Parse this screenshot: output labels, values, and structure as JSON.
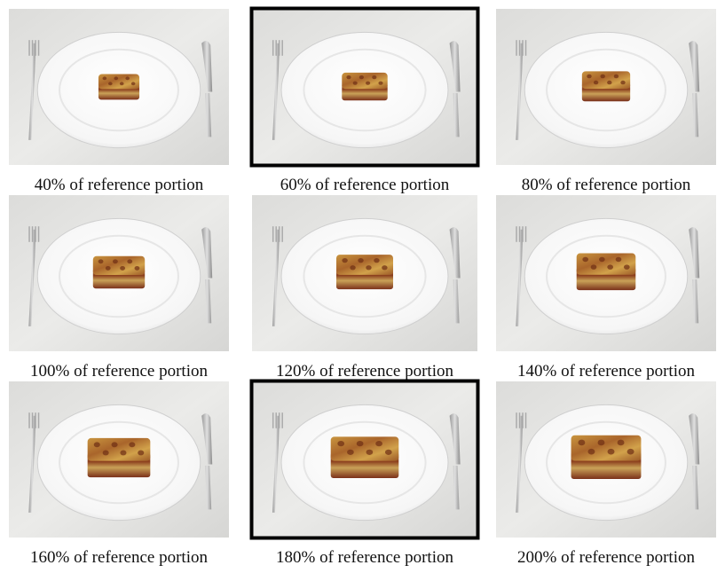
{
  "panels": [
    {
      "caption": "40% of reference portion",
      "highlighted": false
    },
    {
      "caption": "60% of reference portion",
      "highlighted": true
    },
    {
      "caption": "80% of reference portion",
      "highlighted": false
    },
    {
      "caption": "100% of reference portion",
      "highlighted": false
    },
    {
      "caption": "120% of reference portion",
      "highlighted": false
    },
    {
      "caption": "140% of reference portion",
      "highlighted": false
    },
    {
      "caption": "160% of reference portion",
      "highlighted": false
    },
    {
      "caption": "180% of reference portion",
      "highlighted": true
    },
    {
      "caption": "200% of reference portion",
      "highlighted": false
    }
  ]
}
